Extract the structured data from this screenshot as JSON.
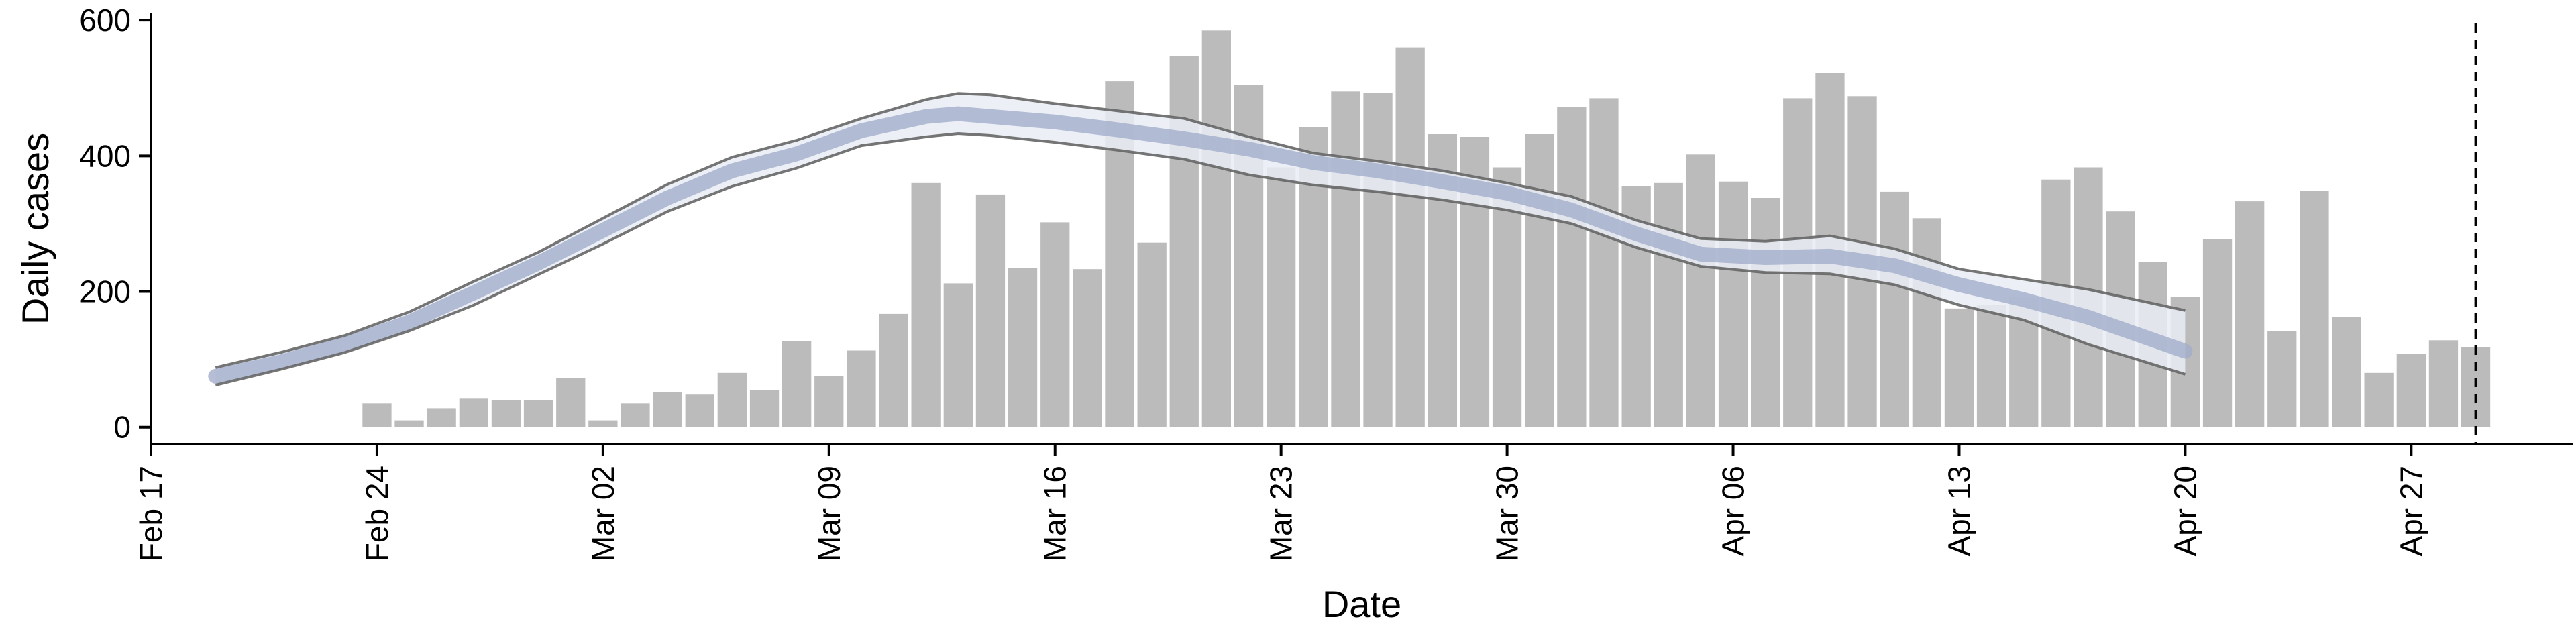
{
  "chart_data": {
    "type": "bar",
    "xlabel": "Date",
    "ylabel": "Daily cases",
    "ylim": [
      -25,
      610
    ],
    "xlim": [
      "2020-02-17",
      "2020-05-02"
    ],
    "grid": false,
    "legend": "none",
    "x_ticks": [
      {
        "date": "2020-02-17",
        "label": "Feb 17"
      },
      {
        "date": "2020-02-24",
        "label": "Feb 24"
      },
      {
        "date": "2020-03-02",
        "label": "Mar 02"
      },
      {
        "date": "2020-03-09",
        "label": "Mar 09"
      },
      {
        "date": "2020-03-16",
        "label": "Mar 16"
      },
      {
        "date": "2020-03-23",
        "label": "Mar 23"
      },
      {
        "date": "2020-03-30",
        "label": "Mar 30"
      },
      {
        "date": "2020-04-06",
        "label": "Apr 06"
      },
      {
        "date": "2020-04-13",
        "label": "Apr 13"
      },
      {
        "date": "2020-04-20",
        "label": "Apr 20"
      },
      {
        "date": "2020-04-27",
        "label": "Apr 27"
      }
    ],
    "y_ticks": [
      {
        "value": 0,
        "label": "0"
      },
      {
        "value": 200,
        "label": "200"
      },
      {
        "value": 400,
        "label": "400"
      },
      {
        "value": 600,
        "label": "600"
      }
    ],
    "bars": {
      "color": "#bbbbbb",
      "x": [
        "2020-02-24",
        "2020-02-25",
        "2020-02-26",
        "2020-02-27",
        "2020-02-28",
        "2020-02-29",
        "2020-03-01",
        "2020-03-02",
        "2020-03-03",
        "2020-03-04",
        "2020-03-05",
        "2020-03-06",
        "2020-03-07",
        "2020-03-08",
        "2020-03-09",
        "2020-03-10",
        "2020-03-11",
        "2020-03-12",
        "2020-03-13",
        "2020-03-14",
        "2020-03-15",
        "2020-03-16",
        "2020-03-17",
        "2020-03-18",
        "2020-03-19",
        "2020-03-20",
        "2020-03-21",
        "2020-03-22",
        "2020-03-23",
        "2020-03-24",
        "2020-03-25",
        "2020-03-26",
        "2020-03-27",
        "2020-03-28",
        "2020-03-29",
        "2020-03-30",
        "2020-03-31",
        "2020-04-01",
        "2020-04-02",
        "2020-04-03",
        "2020-04-04",
        "2020-04-05",
        "2020-04-06",
        "2020-04-07",
        "2020-04-08",
        "2020-04-09",
        "2020-04-10",
        "2020-04-11",
        "2020-04-12",
        "2020-04-13",
        "2020-04-14",
        "2020-04-15",
        "2020-04-16",
        "2020-04-17",
        "2020-04-18",
        "2020-04-19",
        "2020-04-20",
        "2020-04-21",
        "2020-04-22",
        "2020-04-23",
        "2020-04-24",
        "2020-04-25",
        "2020-04-26",
        "2020-04-27",
        "2020-04-28",
        "2020-04-29"
      ],
      "values": [
        35,
        10,
        28,
        42,
        40,
        40,
        72,
        10,
        35,
        52,
        48,
        80,
        55,
        127,
        75,
        113,
        167,
        360,
        212,
        343,
        235,
        302,
        233,
        510,
        272,
        547,
        585,
        505,
        383,
        442,
        495,
        493,
        560,
        432,
        428,
        383,
        432,
        472,
        485,
        355,
        360,
        402,
        362,
        338,
        485,
        522,
        488,
        347,
        308,
        175,
        180,
        192,
        365,
        383,
        318,
        243,
        192,
        277,
        333,
        142,
        348,
        162,
        80,
        108,
        128,
        118
      ]
    },
    "model": {
      "band_color": "#e9ecf5",
      "median_color": "#a3aecb",
      "line_color": "#666666",
      "x": [
        "2020-02-19",
        "2020-02-21",
        "2020-02-23",
        "2020-02-25",
        "2020-02-27",
        "2020-02-29",
        "2020-03-02",
        "2020-03-04",
        "2020-03-06",
        "2020-03-08",
        "2020-03-10",
        "2020-03-12",
        "2020-03-13",
        "2020-03-14",
        "2020-03-16",
        "2020-03-18",
        "2020-03-20",
        "2020-03-22",
        "2020-03-24",
        "2020-03-26",
        "2020-03-28",
        "2020-03-30",
        "2020-04-01",
        "2020-04-03",
        "2020-04-05",
        "2020-04-07",
        "2020-04-09",
        "2020-04-11",
        "2020-04-13",
        "2020-04-15",
        "2020-04-17",
        "2020-04-20"
      ],
      "upper": [
        88,
        110,
        135,
        170,
        215,
        258,
        308,
        358,
        398,
        423,
        455,
        483,
        492,
        490,
        477,
        466,
        455,
        428,
        404,
        392,
        378,
        360,
        340,
        305,
        278,
        274,
        282,
        263,
        233,
        218,
        203,
        172
      ],
      "median": [
        75,
        96,
        122,
        155,
        198,
        242,
        290,
        338,
        378,
        403,
        437,
        458,
        462,
        458,
        450,
        438,
        425,
        410,
        390,
        378,
        362,
        345,
        320,
        285,
        255,
        250,
        252,
        238,
        210,
        188,
        162,
        112
      ],
      "lower": [
        62,
        85,
        110,
        142,
        180,
        225,
        270,
        318,
        355,
        382,
        415,
        428,
        433,
        430,
        420,
        408,
        395,
        372,
        357,
        347,
        335,
        320,
        300,
        265,
        237,
        228,
        226,
        210,
        180,
        158,
        122,
        78
      ]
    },
    "annotations": [
      {
        "type": "vline",
        "x": "2020-04-29",
        "style": "dashed"
      }
    ]
  }
}
